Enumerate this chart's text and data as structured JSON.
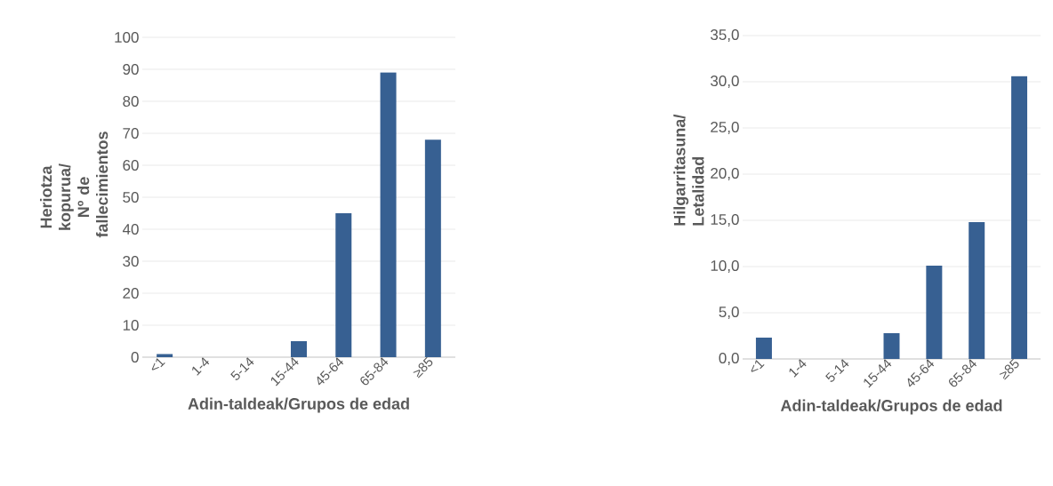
{
  "chart_data": [
    {
      "type": "bar",
      "xlabel": "Adin-taldeak/Grupos de edad",
      "ylabel": "Heriotza kopurua/ Nº de fallecimientos",
      "categories": [
        "<1",
        "1-4",
        "5-14",
        "15-44",
        "45-64",
        "65-84",
        "≥85"
      ],
      "values": [
        1,
        0,
        0,
        5,
        45,
        89,
        68
      ],
      "color": "#376092",
      "ylim": [
        0,
        100
      ],
      "yticks": [
        0,
        10,
        20,
        30,
        40,
        50,
        60,
        70,
        80,
        90,
        100
      ],
      "grid": "y"
    },
    {
      "type": "bar",
      "xlabel": "Adin-taldeak/Grupos de edad",
      "ylabel": "Hilgarritasuna/ Letalidad",
      "categories": [
        "<1",
        "1-4",
        "5-14",
        "15-44",
        "45-64",
        "65-84",
        "≥85"
      ],
      "values": [
        2.3,
        0,
        0,
        2.8,
        10.1,
        14.8,
        30.6
      ],
      "color": "#376092",
      "ylim": [
        0,
        35
      ],
      "yticks": [
        {
          "value": 0,
          "label": "0,0"
        },
        {
          "value": 5,
          "label": "5,0"
        },
        {
          "value": 10,
          "label": "10,0"
        },
        {
          "value": 15,
          "label": "15,0"
        },
        {
          "value": 20,
          "label": "20,0"
        },
        {
          "value": 25,
          "label": "25,0"
        },
        {
          "value": 30,
          "label": "30,0"
        },
        {
          "value": 35,
          "label": "35,0"
        }
      ],
      "grid": "y"
    }
  ]
}
